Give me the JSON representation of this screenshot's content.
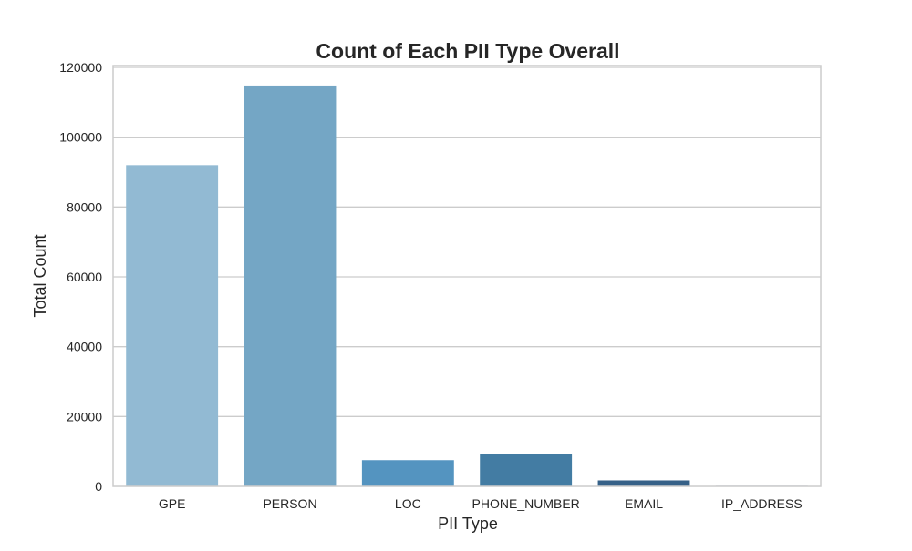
{
  "chart_data": {
    "type": "bar",
    "title": "Count of Each PII Type Overall",
    "xlabel": "PII Type",
    "ylabel": "Total Count",
    "categories": [
      "GPE",
      "PERSON",
      "LOC",
      "PHONE_NUMBER",
      "EMAIL",
      "IP_ADDRESS"
    ],
    "values": [
      92000,
      114800,
      7500,
      9300,
      1700,
      150
    ],
    "ylim": [
      0,
      120000
    ],
    "yticks": [
      0,
      20000,
      40000,
      60000,
      80000,
      100000,
      120000
    ],
    "ytick_labels": [
      "0",
      "20000",
      "40000",
      "60000",
      "80000",
      "100000",
      "120000"
    ],
    "grid": true,
    "colors": [
      "#92bad3",
      "#74a6c5",
      "#5494c0",
      "#437ca3",
      "#366188",
      "#2b4a6b"
    ],
    "grid_color": "#cccccc",
    "frame_color": "#cccccc"
  }
}
